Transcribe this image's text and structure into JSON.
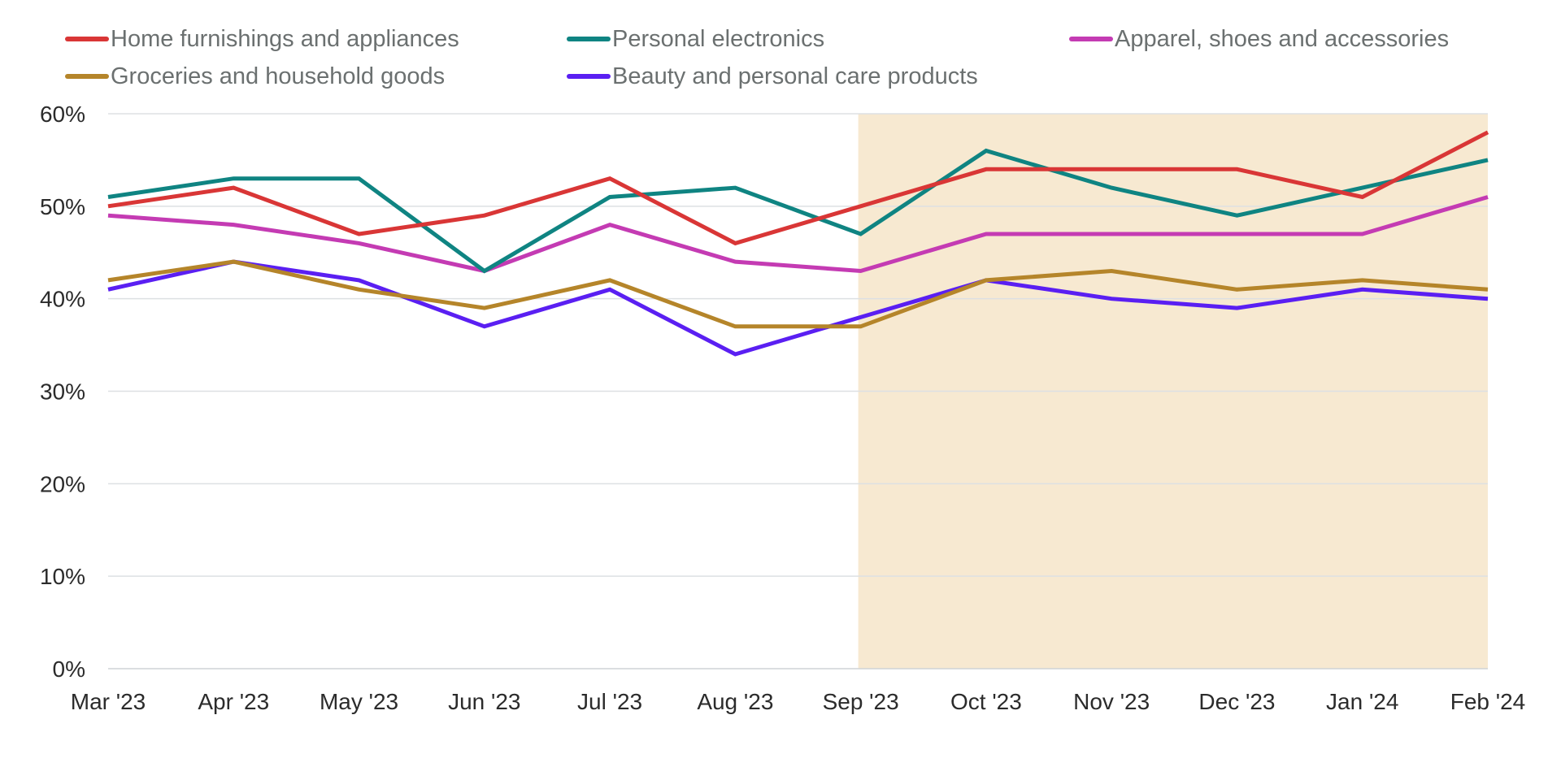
{
  "chart_data": {
    "type": "line",
    "categories": [
      "Mar '23",
      "Apr '23",
      "May '23",
      "Jun '23",
      "Jul '23",
      "Aug '23",
      "Sep '23",
      "Oct '23",
      "Nov '23",
      "Dec '23",
      "Jan '24",
      "Feb '24"
    ],
    "ylim": [
      0,
      60
    ],
    "yticks": [
      0,
      10,
      20,
      30,
      40,
      50,
      60
    ],
    "ytick_labels": [
      "0%",
      "10%",
      "20%",
      "30%",
      "40%",
      "50%",
      "60%"
    ],
    "grid": true,
    "legend_position": "top",
    "highlight": {
      "from": "Sep '23",
      "to": "Feb '24",
      "color": "#f7e9d1"
    },
    "series": [
      {
        "name": "Home furnishings and appliances",
        "color": "#d93636",
        "values": [
          50,
          52,
          47,
          49,
          53,
          46,
          50,
          54,
          54,
          54,
          51,
          58
        ]
      },
      {
        "name": "Personal electronics",
        "color": "#0f8482",
        "values": [
          51,
          53,
          53,
          43,
          51,
          52,
          47,
          56,
          52,
          49,
          52,
          55
        ]
      },
      {
        "name": "Apparel, shoes and accessories",
        "color": "#c43bb3",
        "values": [
          49,
          48,
          46,
          43,
          48,
          44,
          43,
          47,
          47,
          47,
          47,
          51
        ]
      },
      {
        "name": "Groceries and household goods",
        "color": "#b5852a",
        "values": [
          42,
          44,
          41,
          39,
          42,
          37,
          37,
          42,
          43,
          41,
          42,
          41
        ]
      },
      {
        "name": "Beauty and personal care products",
        "color": "#5a1ff2",
        "values": [
          41,
          44,
          42,
          37,
          41,
          34,
          38,
          42,
          40,
          39,
          41,
          40
        ]
      }
    ]
  }
}
